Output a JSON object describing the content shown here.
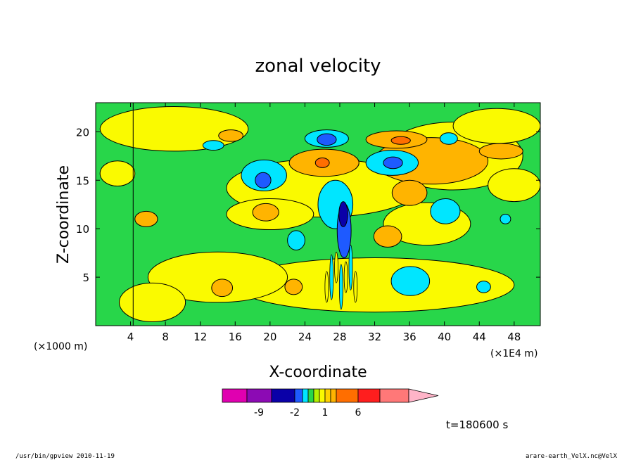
{
  "chart_data": {
    "type": "heatmap",
    "title": "zonal velocity",
    "xlabel": "X-coordinate",
    "ylabel": "Z-coordinate",
    "x_ticks": [
      "4",
      "8",
      "12",
      "16",
      "20",
      "24",
      "28",
      "32",
      "36",
      "40",
      "44",
      "48"
    ],
    "x_tick_values": [
      4,
      8,
      12,
      16,
      20,
      24,
      28,
      32,
      36,
      40,
      44,
      48
    ],
    "y_ticks": [
      "5",
      "10",
      "15",
      "20"
    ],
    "y_tick_values": [
      5,
      10,
      15,
      20
    ],
    "xlim": [
      0,
      51
    ],
    "ylim": [
      0,
      23
    ],
    "x_unit_left": "(×1000 m)",
    "x_unit_right": "(×1E4 m)",
    "time_label": "t=180600 s",
    "grid": false,
    "colorbar": {
      "colors": [
        "#e000b0",
        "#8c0ab4",
        "#0a00a8",
        "#1e5aff",
        "#00e6ff",
        "#28d64a",
        "#b4f000",
        "#fafa00",
        "#ffd200",
        "#ffb400",
        "#ff6e00",
        "#ff1e1e",
        "#ff7878",
        "#ffb4c8"
      ],
      "labels": [
        "-9",
        "-2",
        "1",
        "6"
      ]
    },
    "features": [
      {
        "x": 26,
        "z": 17,
        "value": 3
      },
      {
        "x": 36,
        "z": 14,
        "value": 3
      },
      {
        "x": 34,
        "z": 17,
        "value": -4
      },
      {
        "x": 19,
        "z": 15,
        "value": -4
      },
      {
        "x": 28.5,
        "z": 9,
        "value": -8
      },
      {
        "x": 26.5,
        "z": 19,
        "value": -4
      },
      {
        "x": 36,
        "z": 5,
        "value": -2
      },
      {
        "x": 40,
        "z": 12,
        "value": -2
      }
    ]
  },
  "footer": {
    "left": "/usr/bin/gpview   2010-11-19",
    "right": "arare-earth_VelX.nc@VelX"
  }
}
